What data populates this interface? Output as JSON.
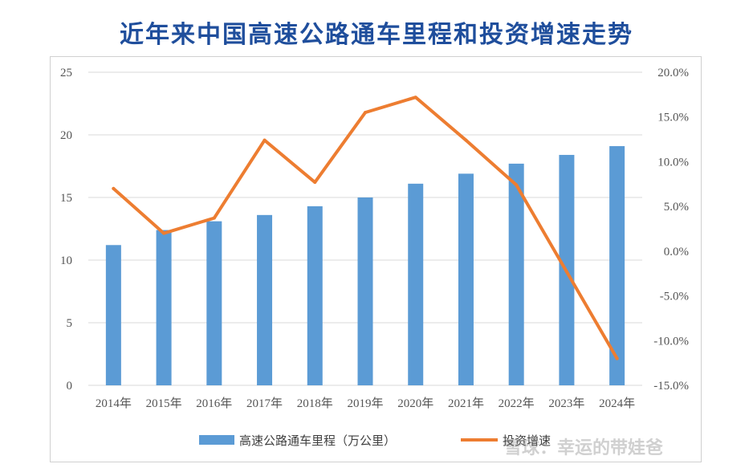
{
  "chart_data": {
    "type": "bar+line",
    "title": "近年来中国高速公路通车里程和投资增速走势",
    "categories": [
      "2014年",
      "2015年",
      "2016年",
      "2017年",
      "2018年",
      "2019年",
      "2020年",
      "2021年",
      "2022年",
      "2023年",
      "2024年"
    ],
    "series": [
      {
        "name": "高速公路通车里程（万公里）",
        "type": "bar",
        "axis": "left",
        "color": "#5b9bd5",
        "values": [
          11.2,
          12.4,
          13.1,
          13.6,
          14.3,
          15.0,
          16.1,
          16.9,
          17.7,
          18.4,
          19.1
        ]
      },
      {
        "name": "投资增速",
        "type": "line",
        "axis": "right",
        "color": "#ed7d31",
        "values": [
          7.0,
          2.0,
          3.7,
          12.4,
          7.7,
          15.5,
          17.2,
          12.4,
          7.4,
          -2.3,
          -12.0
        ]
      }
    ],
    "y_left": {
      "min": 0,
      "max": 25,
      "ticks": [
        "0",
        "5",
        "10",
        "15",
        "20",
        "25"
      ]
    },
    "y_right": {
      "min": -15,
      "max": 20,
      "ticks": [
        "-15.0%",
        "-10.0%",
        "-5.0%",
        "0.0%",
        "5.0%",
        "10.0%",
        "15.0%",
        "20.0%"
      ]
    },
    "legend_position": "bottom"
  },
  "watermark": "雪球：幸运的带娃爸"
}
